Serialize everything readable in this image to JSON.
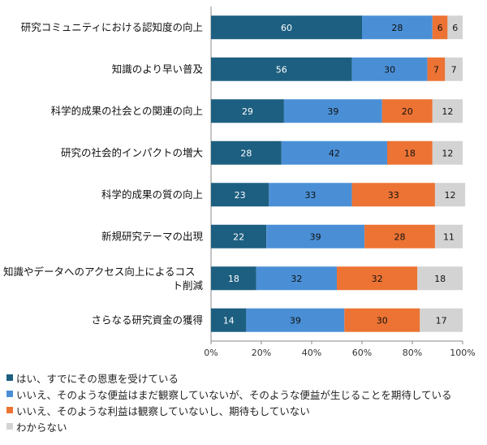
{
  "chart_data": {
    "type": "bar",
    "orientation": "horizontal",
    "stacked": "percent",
    "categories": [
      "研究コミュニティにおける認知度の向上",
      "知識のより早い普及",
      "科学的成果の社会との関連の向上",
      "研究の社会的インパクトの増大",
      "科学的成果の質の向上",
      "新規研究テーマの出現",
      "知識やデータへのアクセス向上によるコスト削減",
      "さらなる研究資金の獲得"
    ],
    "series": [
      {
        "name": "はい、すでにその恩恵を受けている",
        "color": "#1d5f80",
        "values": [
          60,
          56,
          29,
          28,
          23,
          22,
          18,
          14
        ]
      },
      {
        "name": "いいえ、そのような便益はまだ観察していないが、そのような便益が生じることを期待している",
        "color": "#4a8fd6",
        "values": [
          28,
          30,
          39,
          42,
          33,
          39,
          32,
          39
        ]
      },
      {
        "name": "いいえ、そのような利益は観察していないし、期待もしていない",
        "color": "#ec7333",
        "values": [
          6,
          7,
          20,
          18,
          33,
          28,
          32,
          30
        ]
      },
      {
        "name": "わからない",
        "color": "#d3d3d3",
        "values": [
          6,
          7,
          12,
          12,
          12,
          11,
          18,
          17
        ]
      }
    ],
    "xlim": [
      0,
      100
    ],
    "x_ticks": [
      "0%",
      "20%",
      "40%",
      "60%",
      "80%",
      "100%"
    ],
    "grid": false,
    "legend_position": "bottom"
  }
}
